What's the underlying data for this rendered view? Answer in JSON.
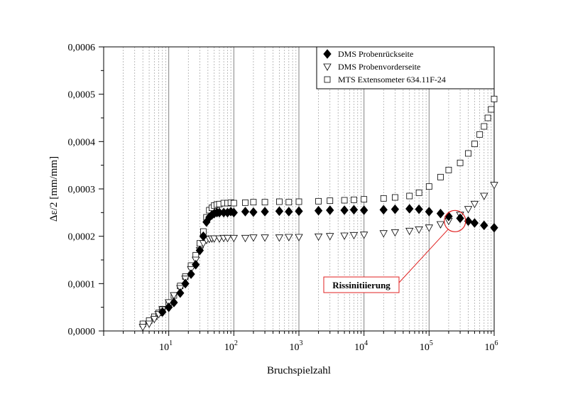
{
  "chart_data": {
    "type": "scatter",
    "xscale": "log",
    "xlim": [
      1,
      1000000
    ],
    "ylim": [
      0,
      0.0006
    ],
    "xlabel": "Bruchspielzahl",
    "ylabel": "Δε/2 [mm/mm]",
    "grid": {
      "x_major": true,
      "x_minor": true,
      "y": false
    },
    "x_ticks": [
      {
        "value": 10,
        "base": "10",
        "exp": "1"
      },
      {
        "value": 100,
        "base": "10",
        "exp": "2"
      },
      {
        "value": 1000,
        "base": "10",
        "exp": "3"
      },
      {
        "value": 10000,
        "base": "10",
        "exp": "4"
      },
      {
        "value": 100000,
        "base": "10",
        "exp": "5"
      },
      {
        "value": 1000000,
        "base": "10",
        "exp": "6"
      }
    ],
    "y_ticks": [
      {
        "value": 0,
        "label": "0,0000"
      },
      {
        "value": 0.0001,
        "label": "0,0001"
      },
      {
        "value": 0.0002,
        "label": "0,0002"
      },
      {
        "value": 0.0003,
        "label": "0,0003"
      },
      {
        "value": 0.0004,
        "label": "0,0004"
      },
      {
        "value": 0.0005,
        "label": "0,0005"
      },
      {
        "value": 0.0006,
        "label": "0,0006"
      }
    ],
    "legend_position": "top-right",
    "series": [
      {
        "name": "DMS Probenrückseite",
        "marker": "diamond-filled",
        "x": [
          8,
          10,
          12,
          15,
          18,
          22,
          26,
          30,
          34,
          38,
          42,
          46,
          50,
          55,
          60,
          70,
          80,
          90,
          100,
          150,
          200,
          300,
          500,
          700,
          1000,
          2000,
          3000,
          5000,
          7000,
          10000,
          20000,
          30000,
          50000,
          70000,
          100000,
          150000,
          200000,
          300000,
          400000,
          500000,
          700000,
          1000000
        ],
        "y": [
          4e-05,
          5e-05,
          6e-05,
          8e-05,
          0.0001,
          0.00012,
          0.00014,
          0.00017,
          0.0002,
          0.00023,
          0.00024,
          0.000245,
          0.000248,
          0.00025,
          0.00025,
          0.00025,
          0.00025,
          0.000252,
          0.00025,
          0.000252,
          0.000251,
          0.000252,
          0.000253,
          0.000252,
          0.000253,
          0.000254,
          0.000255,
          0.000255,
          0.000256,
          0.000255,
          0.000256,
          0.000257,
          0.000258,
          0.000257,
          0.000252,
          0.000248,
          0.000242,
          0.000238,
          0.000232,
          0.000228,
          0.000223,
          0.000218
        ]
      },
      {
        "name": "DMS Probenvorderseite",
        "marker": "triangle-down-open",
        "x": [
          4,
          5,
          6,
          7,
          8,
          10,
          12,
          15,
          18,
          22,
          26,
          30,
          34,
          38,
          42,
          46,
          50,
          60,
          70,
          80,
          100,
          150,
          200,
          300,
          500,
          700,
          1000,
          2000,
          3000,
          5000,
          7000,
          10000,
          20000,
          30000,
          50000,
          70000,
          100000,
          150000,
          200000,
          300000,
          400000,
          500000,
          700000,
          1000000
        ],
        "y": [
          8e-06,
          1.5e-05,
          2.5e-05,
          3.5e-05,
          4.5e-05,
          6e-05,
          7.5e-05,
          9e-05,
          0.00011,
          0.00013,
          0.00015,
          0.00017,
          0.000185,
          0.000192,
          0.000194,
          0.000195,
          0.000195,
          0.000195,
          0.000196,
          0.000196,
          0.000196,
          0.000196,
          0.000197,
          0.000197,
          0.000197,
          0.000198,
          0.000198,
          0.000199,
          0.0002,
          0.000201,
          0.000202,
          0.000203,
          0.000206,
          0.000208,
          0.000211,
          0.000214,
          0.000218,
          0.000225,
          0.000232,
          0.000245,
          0.000257,
          0.000268,
          0.000285,
          0.000308
        ]
      },
      {
        "name": "MTS Extensometer 634.11F-24",
        "marker": "square-open",
        "x": [
          4,
          5,
          6,
          7,
          8,
          10,
          12,
          15,
          18,
          22,
          26,
          30,
          34,
          38,
          42,
          46,
          50,
          55,
          60,
          70,
          80,
          90,
          100,
          150,
          200,
          300,
          500,
          700,
          1000,
          2000,
          3000,
          5000,
          7000,
          10000,
          20000,
          30000,
          50000,
          70000,
          100000,
          150000,
          200000,
          300000,
          400000,
          500000,
          600000,
          700000,
          800000,
          900000,
          1000000
        ],
        "y": [
          1.5e-05,
          2.2e-05,
          3e-05,
          3.8e-05,
          4.6e-05,
          6e-05,
          7.5e-05,
          9.5e-05,
          0.000115,
          0.000138,
          0.00016,
          0.000185,
          0.00021,
          0.00024,
          0.000255,
          0.00026,
          0.000265,
          0.000267,
          0.000268,
          0.00027,
          0.00027,
          0.000271,
          0.00027,
          0.000271,
          0.000272,
          0.000272,
          0.000273,
          0.000272,
          0.000273,
          0.000274,
          0.000275,
          0.000276,
          0.000277,
          0.000278,
          0.00028,
          0.000282,
          0.000285,
          0.000292,
          0.000305,
          0.000325,
          0.00034,
          0.000355,
          0.000375,
          0.000395,
          0.000415,
          0.000432,
          0.00045,
          0.000468,
          0.00049
        ]
      }
    ],
    "annotation": {
      "label": "Rissinitiierung",
      "target_x": 250000,
      "target_y": 0.000232
    }
  }
}
